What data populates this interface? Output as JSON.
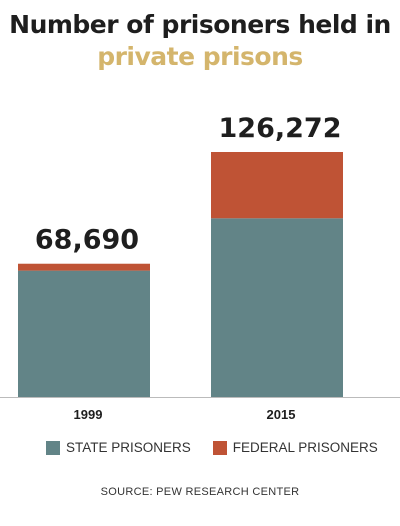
{
  "title_line1": "Number of prisoners held in",
  "title_line2": "private prisons",
  "colors": {
    "title_accent": "#d4b56c",
    "state": "#628487",
    "federal": "#bf5335",
    "text": "#1e1e1e"
  },
  "legend": {
    "state_label": "STATE PRISONERS",
    "federal_label": "FEDERAL PRISONERS"
  },
  "source": "SOURCE: PEW RESEARCH CENTER",
  "chart_data": {
    "type": "bar",
    "stacked": true,
    "categories": [
      "1999",
      "2015"
    ],
    "totals_labels": [
      "68,690",
      "126,272"
    ],
    "totals": [
      68690,
      126272
    ],
    "series": [
      {
        "name": "STATE PRISONERS",
        "values": [
          65135,
          92106
        ]
      },
      {
        "name": "FEDERAL PRISONERS",
        "values": [
          3555,
          34166
        ]
      }
    ],
    "ylim": [
      0,
      126272
    ],
    "grid": false,
    "legend_position": "bottom"
  }
}
